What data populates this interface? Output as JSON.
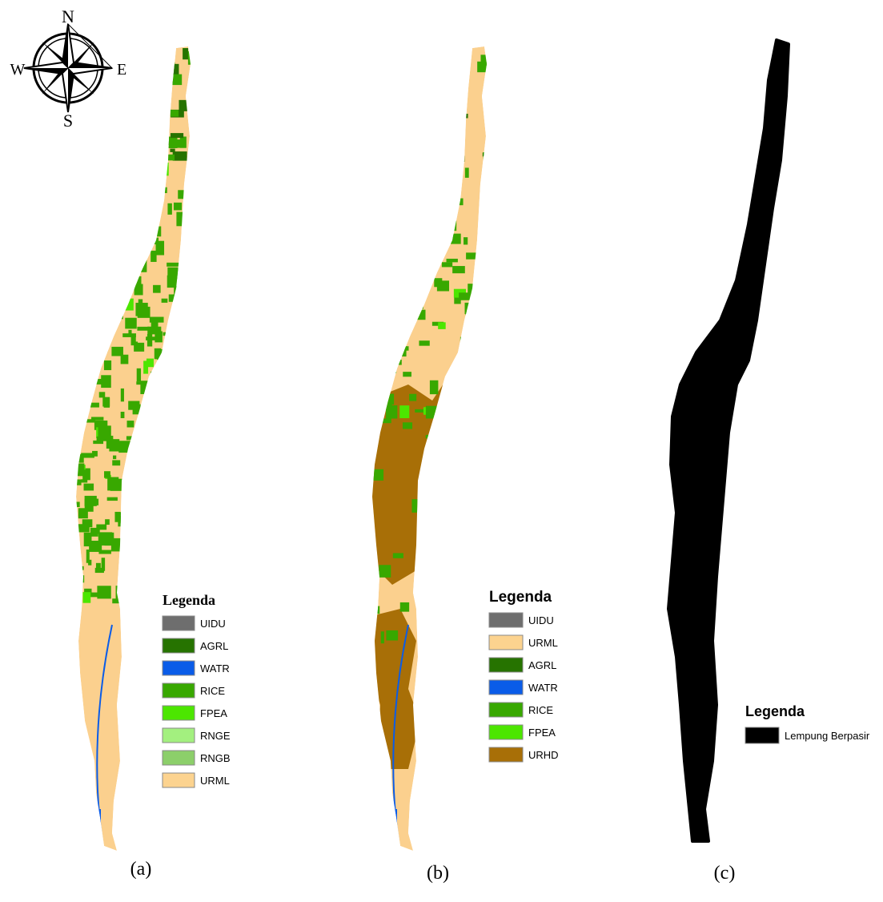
{
  "compass": {
    "north": "N",
    "east": "E",
    "south": "S",
    "west": "W"
  },
  "panels": [
    {
      "caption": "(a)",
      "legend": {
        "title": "Legenda",
        "items": [
          {
            "label": "UIDU",
            "color": "#6e6e6e"
          },
          {
            "label": "AGRL",
            "color": "#267300"
          },
          {
            "label": "WATR",
            "color": "#0a5ce8"
          },
          {
            "label": "RICE",
            "color": "#38a800"
          },
          {
            "label": "FPEA",
            "color": "#4ce600"
          },
          {
            "label": "RNGE",
            "color": "#a3f07f"
          },
          {
            "label": "RNGB",
            "color": "#8ccf6a"
          },
          {
            "label": "URML",
            "color": "#fcd38f"
          }
        ]
      }
    },
    {
      "caption": "(b)",
      "legend": {
        "title": "Legenda",
        "items": [
          {
            "label": "UIDU",
            "color": "#6e6e6e"
          },
          {
            "label": "URML",
            "color": "#fcd38f"
          },
          {
            "label": "AGRL",
            "color": "#267300"
          },
          {
            "label": "WATR",
            "color": "#0a5ce8"
          },
          {
            "label": "RICE",
            "color": "#38a800"
          },
          {
            "label": "FPEA",
            "color": "#4ce600"
          },
          {
            "label": "URHD",
            "color": "#a86f07"
          }
        ]
      }
    },
    {
      "caption": "(c)",
      "legend": {
        "title": "Legenda",
        "items": [
          {
            "label": "Lempung Berpasir",
            "color": "#000000"
          }
        ]
      }
    }
  ]
}
